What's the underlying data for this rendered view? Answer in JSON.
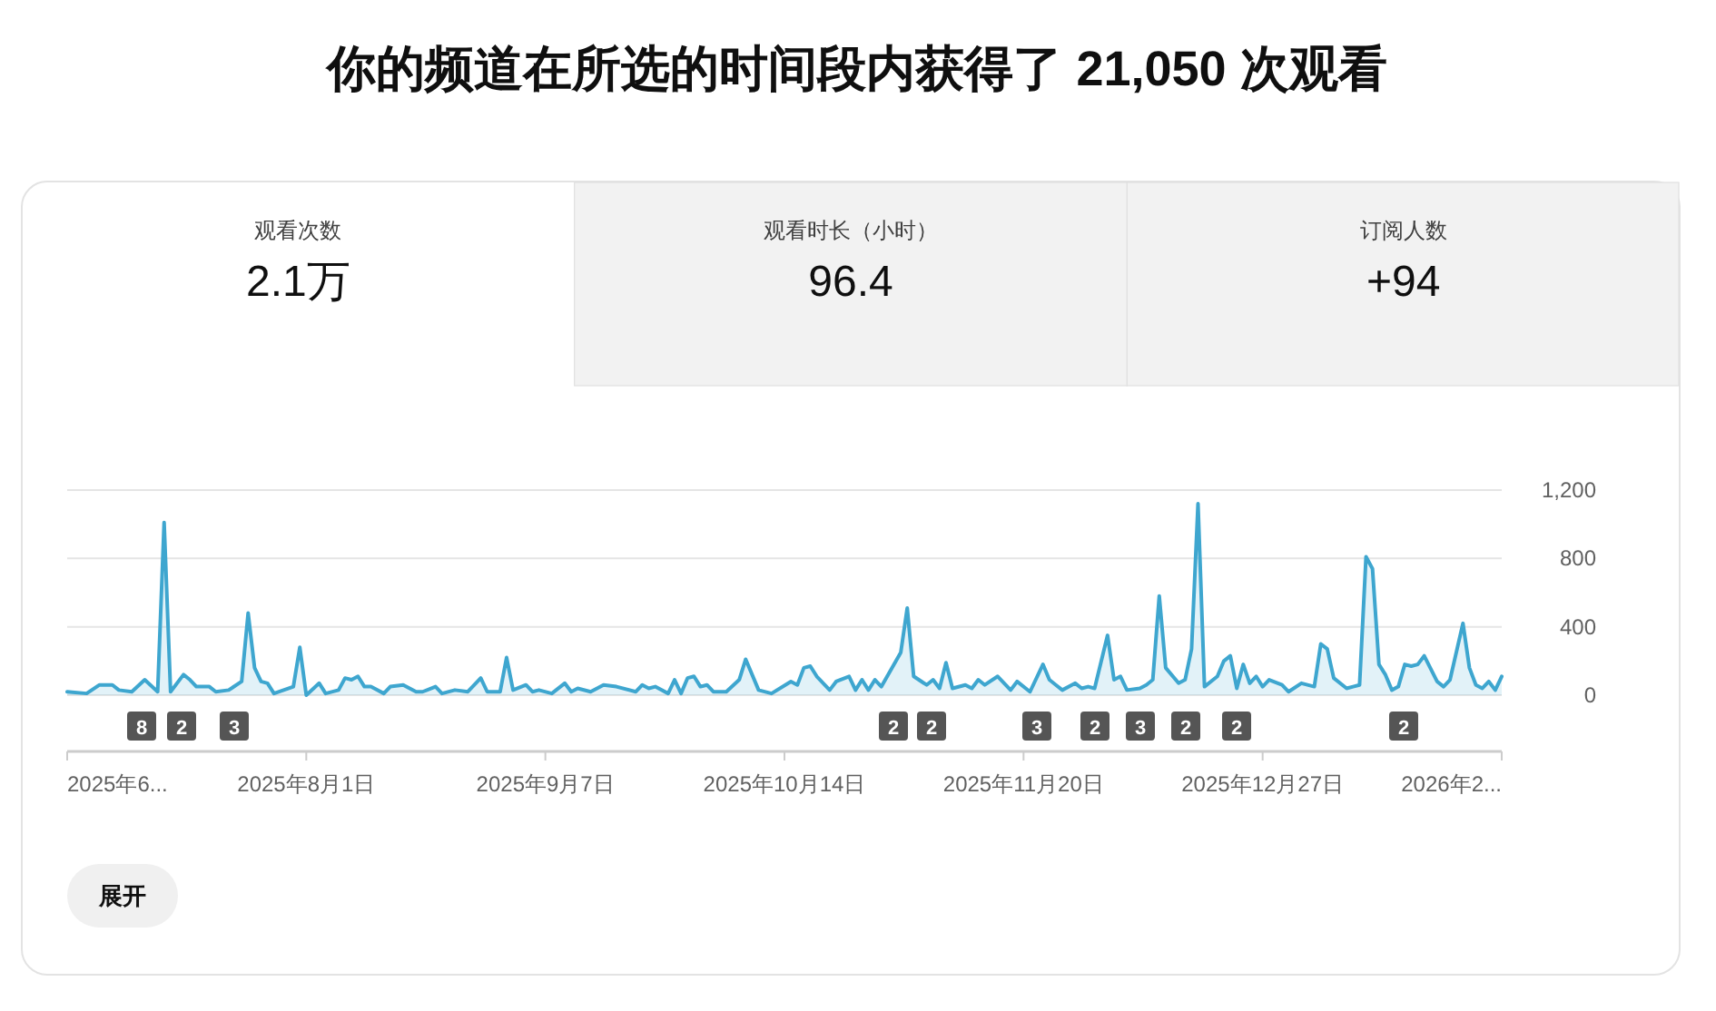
{
  "chart_data": [
    {
      "type": "other",
      "title": "你的频道在所选的时间段内获得了 21,050 次观看",
      "annotations": [
        "观看次数",
        "2.1万",
        "观看时长（小时）",
        "96.4",
        "订阅人数",
        "+94"
      ]
    },
    {
      "type": "area",
      "ylim": [
        0,
        1200
      ],
      "yticks": [
        0,
        400,
        800,
        {
          "value": 1200,
          "label": "1,200"
        }
      ],
      "grid": "y",
      "xlim": [
        "2025-06-25",
        "2026-02-02"
      ],
      "xticks": [
        {
          "value": "2025-06-25",
          "label": "2025年6..."
        },
        {
          "value": "2025-08-01",
          "label": "2025年8月1日"
        },
        {
          "value": "2025-09-07",
          "label": "2025年9月7日"
        },
        {
          "value": "2025-10-14",
          "label": "2025年10月14日"
        },
        {
          "value": "2025-11-20",
          "label": "2025年11月20日"
        },
        {
          "value": "2025-12-27",
          "label": "2025年12月27日"
        },
        {
          "value": "2026-02-02",
          "label": "2026年2..."
        }
      ],
      "x": [
        "2025-06-25",
        "2025-06-28",
        "2025-06-30",
        "2025-07-02",
        "2025-07-03",
        "2025-07-05",
        "2025-07-07",
        "2025-07-09",
        "2025-07-10",
        "2025-07-11",
        "2025-07-13",
        "2025-07-14",
        "2025-07-15",
        "2025-07-17",
        "2025-07-18",
        "2025-07-20",
        "2025-07-22",
        "2025-07-23",
        "2025-07-24",
        "2025-07-25",
        "2025-07-26",
        "2025-07-27",
        "2025-07-30",
        "2025-07-31",
        "2025-08-01",
        "2025-08-03",
        "2025-08-04",
        "2025-08-06",
        "2025-08-07",
        "2025-08-08",
        "2025-08-09",
        "2025-08-10",
        "2025-08-11",
        "2025-08-13",
        "2025-08-14",
        "2025-08-16",
        "2025-08-18",
        "2025-08-19",
        "2025-08-21",
        "2025-08-22",
        "2025-08-24",
        "2025-08-26",
        "2025-08-28",
        "2025-08-29",
        "2025-08-31",
        "2025-09-01",
        "2025-09-02",
        "2025-09-04",
        "2025-09-05",
        "2025-09-06",
        "2025-09-08",
        "2025-09-10",
        "2025-09-11",
        "2025-09-12",
        "2025-09-14",
        "2025-09-16",
        "2025-09-18",
        "2025-09-21",
        "2025-09-22",
        "2025-09-23",
        "2025-09-24",
        "2025-09-26",
        "2025-09-27",
        "2025-09-28",
        "2025-09-29",
        "2025-09-30",
        "2025-10-01",
        "2025-10-02",
        "2025-10-03",
        "2025-10-05",
        "2025-10-07",
        "2025-10-08",
        "2025-10-10",
        "2025-10-12",
        "2025-10-15",
        "2025-10-16",
        "2025-10-17",
        "2025-10-18",
        "2025-10-19",
        "2025-10-21",
        "2025-10-22",
        "2025-10-24",
        "2025-10-25",
        "2025-10-26",
        "2025-10-27",
        "2025-10-28",
        "2025-10-29",
        "2025-11-01",
        "2025-11-02",
        "2025-11-03",
        "2025-11-05",
        "2025-11-06",
        "2025-11-07",
        "2025-11-08",
        "2025-11-09",
        "2025-11-11",
        "2025-11-12",
        "2025-11-13",
        "2025-11-14",
        "2025-11-16",
        "2025-11-18",
        "2025-11-19",
        "2025-11-21",
        "2025-11-23",
        "2025-11-24",
        "2025-11-25",
        "2025-11-26",
        "2025-11-28",
        "2025-11-29",
        "2025-11-30",
        "2025-12-01",
        "2025-12-03",
        "2025-12-04",
        "2025-12-05",
        "2025-12-06",
        "2025-12-08",
        "2025-12-09",
        "2025-12-10",
        "2025-12-11",
        "2025-12-12",
        "2025-12-14",
        "2025-12-15",
        "2025-12-16",
        "2025-12-17",
        "2025-12-18",
        "2025-12-20",
        "2025-12-21",
        "2025-12-22",
        "2025-12-23",
        "2025-12-24",
        "2025-12-25",
        "2025-12-26",
        "2025-12-27",
        "2025-12-28",
        "2025-12-30",
        "2025-12-31",
        "2026-01-02",
        "2026-01-04",
        "2026-01-05",
        "2026-01-06",
        "2026-01-07",
        "2026-01-09",
        "2026-01-10",
        "2026-01-11",
        "2026-01-12",
        "2026-01-13",
        "2026-01-14",
        "2026-01-15",
        "2026-01-16",
        "2026-01-17",
        "2026-01-18",
        "2026-01-19",
        "2026-01-20",
        "2026-01-21",
        "2026-01-23",
        "2026-01-24",
        "2026-01-25",
        "2026-01-27",
        "2026-01-28",
        "2026-01-29",
        "2026-01-30",
        "2026-01-31",
        "2026-02-01",
        "2026-02-02"
      ],
      "series": [
        {
          "color": "#3ea6cf",
          "values": [
            20,
            10,
            60,
            60,
            30,
            20,
            90,
            20,
            1010,
            20,
            120,
            90,
            50,
            50,
            20,
            30,
            80,
            480,
            160,
            80,
            70,
            10,
            50,
            280,
            0,
            70,
            10,
            30,
            100,
            90,
            110,
            50,
            50,
            10,
            50,
            60,
            20,
            20,
            50,
            10,
            30,
            20,
            100,
            20,
            20,
            220,
            30,
            60,
            20,
            30,
            10,
            70,
            20,
            40,
            20,
            60,
            50,
            20,
            60,
            40,
            50,
            10,
            90,
            10,
            100,
            110,
            50,
            60,
            20,
            20,
            90,
            210,
            30,
            10,
            80,
            60,
            160,
            170,
            110,
            30,
            80,
            110,
            30,
            90,
            30,
            90,
            50,
            250,
            510,
            110,
            60,
            90,
            40,
            190,
            40,
            60,
            40,
            90,
            60,
            110,
            30,
            80,
            20,
            180,
            90,
            60,
            30,
            70,
            40,
            50,
            40,
            350,
            90,
            110,
            30,
            40,
            60,
            90,
            580,
            160,
            70,
            90,
            270,
            1120,
            50,
            110,
            200,
            230,
            40,
            180,
            70,
            110,
            50,
            90,
            60,
            20,
            70,
            50,
            300,
            270,
            100,
            40,
            50,
            60,
            810,
            740,
            180,
            120,
            30,
            50,
            180,
            170,
            180,
            230,
            80,
            50,
            90,
            420,
            160,
            60,
            40,
            80,
            30,
            110
          ]
        }
      ],
      "annotations": [
        "8",
        "2",
        "3",
        "2",
        "2",
        "3",
        "2",
        "3",
        "2",
        "2",
        "2",
        "展开"
      ]
    }
  ]
}
